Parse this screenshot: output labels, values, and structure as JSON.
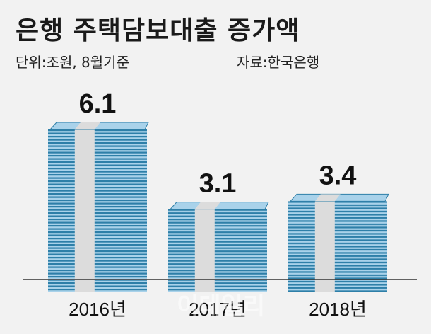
{
  "header": {
    "title": "은행 주택담보대출 증가액",
    "unit": "단위:조원, 8월기준",
    "source": "자료:한국은행"
  },
  "colors": {
    "stack_dark": "#2e7fa8",
    "stack_light": "#a9d2ea",
    "band": "#dcdcdc",
    "baseline": "#333333"
  },
  "chart_data": {
    "type": "bar",
    "title": "은행 주택담보대출 증가액",
    "categories": [
      "2016년",
      "2017년",
      "2018년"
    ],
    "values": [
      6.1,
      3.1,
      3.4
    ],
    "value_labels": [
      "6.1",
      "3.1",
      "3.4"
    ],
    "unit": "조원",
    "ylim": [
      0,
      6.1
    ],
    "grid": false,
    "legend": "none"
  },
  "watermark": "이데일리"
}
